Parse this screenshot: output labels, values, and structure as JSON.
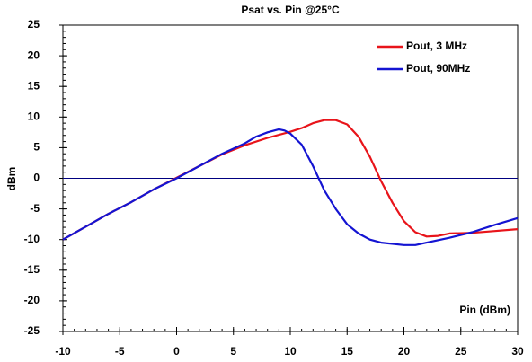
{
  "chart_data": {
    "type": "line",
    "title": "Psat vs. Pin @25°C",
    "x_label": "Pin (dBm)",
    "y_label": "dBm",
    "xlim": [
      -10,
      30
    ],
    "xticks": [
      -10,
      -5,
      0,
      5,
      10,
      15,
      20,
      25,
      30
    ],
    "ylim": [
      -25,
      25
    ],
    "yticks": [
      -25,
      -20,
      -15,
      -10,
      -5,
      0,
      5,
      10,
      15,
      20,
      25
    ],
    "legend": "upper right",
    "series": [
      {
        "name": "Pout, 3 MHz",
        "color": "#e8141a",
        "x": [
          -10,
          -8,
          -6,
          -4,
          -2,
          0,
          2,
          4,
          6,
          8,
          10,
          11,
          12,
          13,
          14,
          15,
          16,
          17,
          18,
          19,
          20,
          21,
          22,
          23,
          24,
          26,
          28,
          30
        ],
        "values": [
          -10,
          -7.9,
          -5.8,
          -3.9,
          -1.8,
          0.1,
          2,
          3.9,
          5.4,
          6.6,
          7.6,
          8.2,
          9,
          9.5,
          9.5,
          8.8,
          6.8,
          3.5,
          -0.5,
          -4,
          -7,
          -8.8,
          -9.5,
          -9.4,
          -9,
          -8.9,
          -8.6,
          -8.3
        ]
      },
      {
        "name": "Pout, 90MHz",
        "color": "#1414d2",
        "x": [
          -10,
          -8,
          -6,
          -4,
          -2,
          0,
          2,
          4,
          6,
          7,
          8,
          9,
          9.5,
          10,
          11,
          12,
          13,
          14,
          15,
          16,
          17,
          18,
          20,
          21,
          22,
          24,
          26,
          28,
          30
        ],
        "values": [
          -10,
          -7.9,
          -5.8,
          -3.9,
          -1.8,
          0,
          2,
          4,
          5.7,
          6.8,
          7.5,
          8,
          7.8,
          7.3,
          5.5,
          2,
          -2,
          -5,
          -7.5,
          -9,
          -10,
          -10.5,
          -10.9,
          -10.9,
          -10.5,
          -9.7,
          -8.8,
          -7.6,
          -6.5
        ]
      }
    ]
  }
}
